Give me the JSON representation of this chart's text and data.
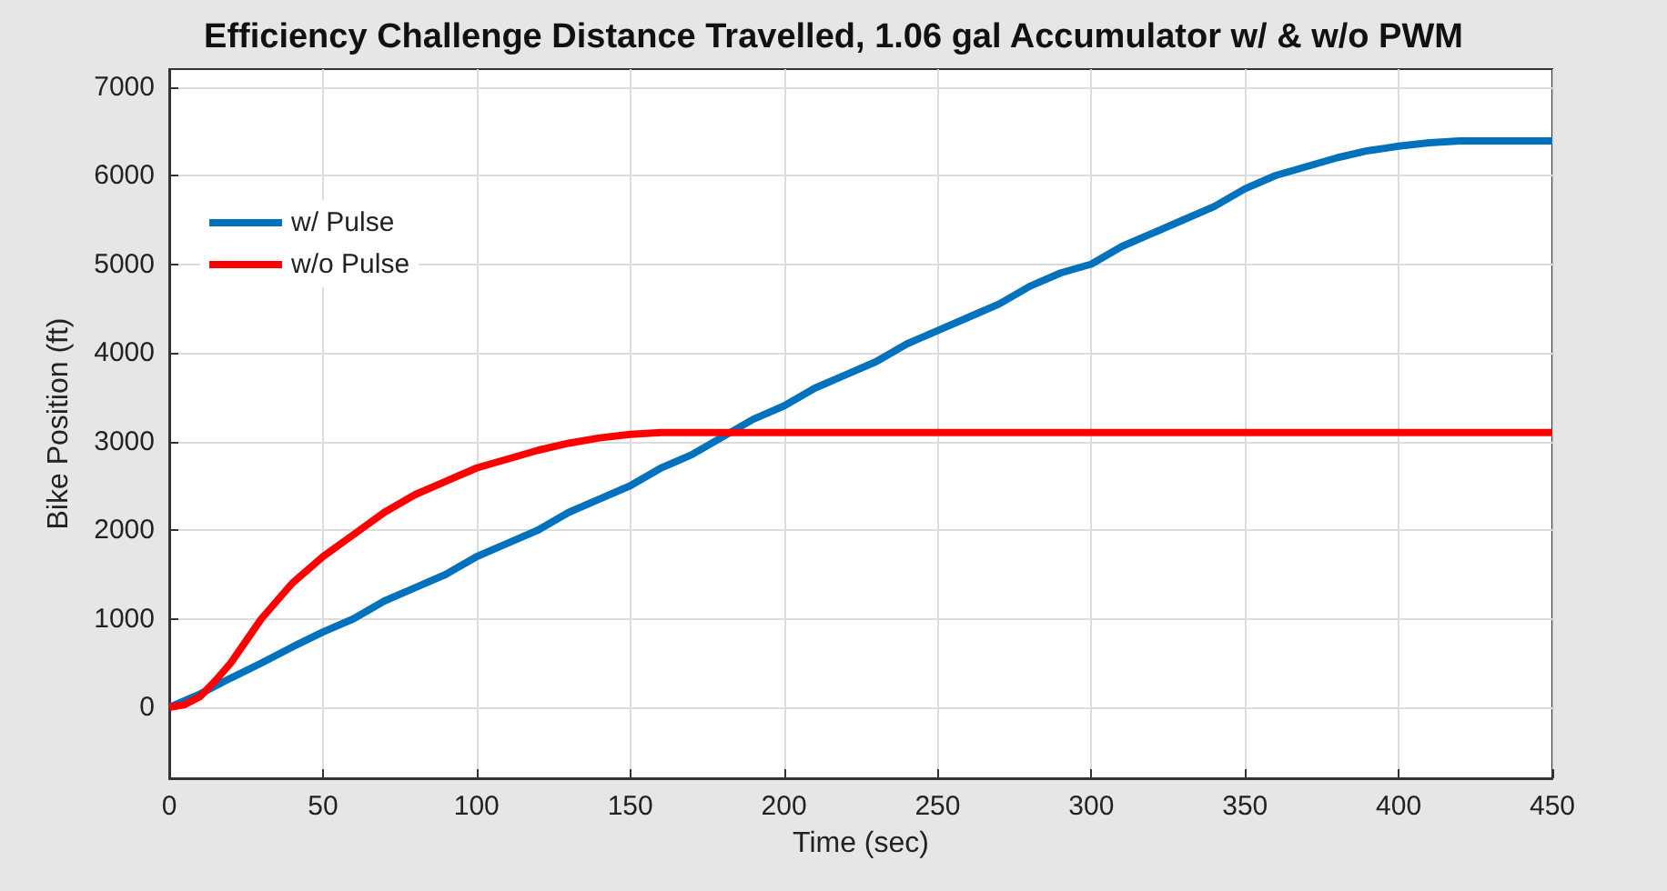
{
  "chart_data": {
    "type": "line",
    "title": "Efficiency Challenge Distance Travelled, 1.06 gal Accumulator w/ & w/o PWM",
    "xlabel": "Time (sec)",
    "ylabel": "Bike Position (ft)",
    "xlim": [
      0,
      450
    ],
    "xticks": [
      0,
      50,
      100,
      150,
      200,
      250,
      300,
      350,
      400,
      450
    ],
    "ylim": [
      -800,
      7200
    ],
    "yticks": [
      0,
      1000,
      2000,
      3000,
      4000,
      5000,
      6000,
      7000
    ],
    "grid": true,
    "legend": "top left",
    "marker": "none",
    "line_style": "solid",
    "series": [
      {
        "name": "w/ Pulse",
        "color": "#0072bd",
        "x": [
          0,
          10,
          20,
          30,
          40,
          50,
          60,
          70,
          80,
          90,
          100,
          110,
          120,
          130,
          140,
          150,
          160,
          170,
          180,
          190,
          200,
          210,
          220,
          230,
          240,
          250,
          260,
          270,
          280,
          290,
          300,
          310,
          320,
          330,
          340,
          350,
          360,
          370,
          380,
          390,
          400,
          410,
          420,
          430,
          440,
          450
        ],
        "values": [
          0,
          150,
          330,
          500,
          680,
          850,
          1000,
          1200,
          1350,
          1500,
          1700,
          1850,
          2000,
          2200,
          2350,
          2500,
          2700,
          2850,
          3050,
          3250,
          3400,
          3600,
          3750,
          3900,
          4100,
          4250,
          4400,
          4550,
          4750,
          4900,
          5000,
          5200,
          5350,
          5500,
          5650,
          5850,
          6000,
          6100,
          6200,
          6280,
          6330,
          6370,
          6390,
          6390,
          6390,
          6390
        ]
      },
      {
        "name": "w/o Pulse",
        "color": "#ff0000",
        "x": [
          0,
          5,
          10,
          15,
          20,
          25,
          30,
          35,
          40,
          50,
          60,
          70,
          80,
          90,
          100,
          110,
          120,
          130,
          140,
          150,
          160,
          170,
          450
        ],
        "values": [
          0,
          30,
          120,
          300,
          500,
          750,
          1000,
          1200,
          1400,
          1700,
          1950,
          2200,
          2400,
          2550,
          2700,
          2800,
          2900,
          2980,
          3040,
          3080,
          3100,
          3100,
          3100
        ]
      }
    ]
  }
}
